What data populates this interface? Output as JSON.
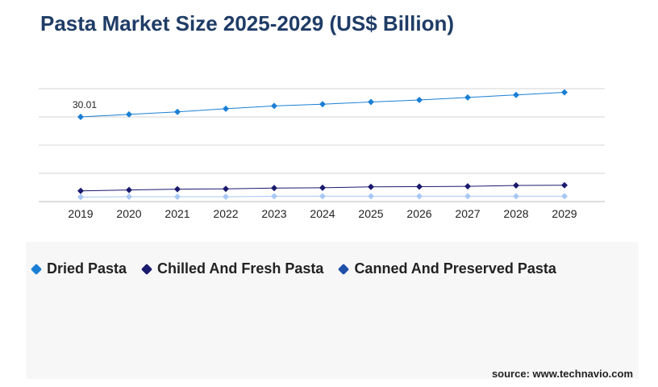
{
  "title": "Pasta Market Size 2025-2029 (US$ Billion)",
  "source": "source: www.technavio.com",
  "chart_data": {
    "type": "line",
    "x": [
      "2019",
      "2020",
      "2021",
      "2022",
      "2023",
      "2024",
      "2025",
      "2026",
      "2027",
      "2028",
      "2029"
    ],
    "ylim": [
      0,
      40
    ],
    "grid": true,
    "legend_position": "bottom-left",
    "series": [
      {
        "name": "Dried Pasta",
        "color": "#1a7fd4",
        "values": [
          30.01,
          30.9,
          31.8,
          32.9,
          33.9,
          34.5,
          35.3,
          36.0,
          36.9,
          37.8,
          38.7
        ],
        "labels": [
          "30.01",
          "",
          "",
          "",
          "",
          "",
          "",
          "",
          "",
          "",
          ""
        ]
      },
      {
        "name": "Chilled And Fresh Pasta",
        "color": "#1a1a6e",
        "values": [
          3.8,
          4.1,
          4.4,
          4.5,
          4.8,
          4.9,
          5.2,
          5.3,
          5.4,
          5.7,
          5.8
        ],
        "labels": [
          "",
          "",
          "",
          "",
          "",
          "",
          "",
          "",
          "",
          "",
          ""
        ]
      },
      {
        "name": "Canned And Preserved Pasta",
        "color": "#a8c8f4",
        "values": [
          1.6,
          1.7,
          1.7,
          1.7,
          1.9,
          1.9,
          1.9,
          1.9,
          1.9,
          1.9,
          1.9
        ],
        "labels": [
          "",
          "",
          "",
          "",
          "",
          "",
          "",
          "",
          "",
          "",
          ""
        ]
      }
    ]
  },
  "legend": [
    {
      "label": "Dried Pasta",
      "color": "#1a7fd4"
    },
    {
      "label": "Chilled And Fresh Pasta",
      "color": "#1a1a6e"
    },
    {
      "label": "Canned And Preserved Pasta",
      "color": "#1f4fa8"
    }
  ]
}
